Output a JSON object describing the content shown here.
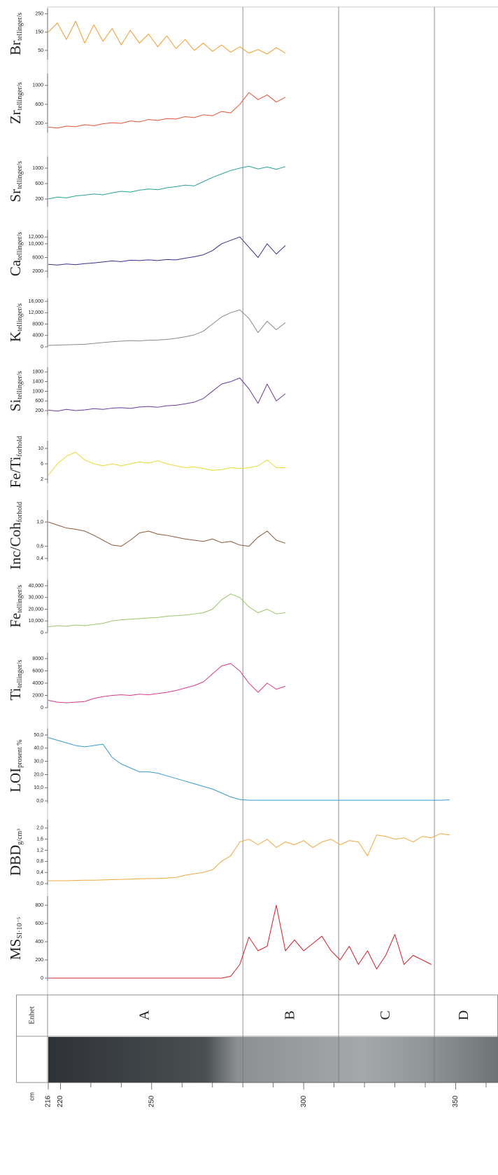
{
  "chart_data": [
    {
      "type": "line",
      "title": "Br",
      "unit": "tellinger/s",
      "color": "#f29a2e",
      "x": [
        216,
        219,
        222,
        225,
        228,
        231,
        234,
        237,
        240,
        243,
        246,
        249,
        252,
        255,
        258,
        261,
        264,
        267,
        270,
        273,
        276,
        279,
        282,
        285,
        288,
        291,
        294
      ],
      "values": [
        150,
        200,
        110,
        210,
        90,
        190,
        100,
        170,
        80,
        160,
        90,
        140,
        70,
        130,
        60,
        110,
        50,
        90,
        45,
        80,
        40,
        70,
        35,
        55,
        30,
        65,
        35
      ],
      "ylim": [
        0,
        280
      ],
      "yticks": [
        50,
        150,
        250
      ]
    },
    {
      "type": "line",
      "title": "Zr",
      "unit": "tellinger/s",
      "color": "#e0553a",
      "x": [
        216,
        219,
        222,
        225,
        228,
        231,
        234,
        237,
        240,
        243,
        246,
        249,
        252,
        255,
        258,
        261,
        264,
        267,
        270,
        273,
        276,
        279,
        282,
        285,
        288,
        291,
        294
      ],
      "values": [
        120,
        100,
        140,
        130,
        170,
        150,
        190,
        210,
        200,
        250,
        230,
        280,
        260,
        300,
        290,
        340,
        320,
        380,
        360,
        450,
        420,
        600,
        850,
        700,
        800,
        650,
        750
      ],
      "ylim": [
        0,
        1250
      ],
      "yticks": [
        200,
        600,
        1000
      ]
    },
    {
      "type": "line",
      "title": "Sr",
      "unit": "tellinger/s",
      "color": "#2aa198",
      "x": [
        216,
        219,
        222,
        225,
        228,
        231,
        234,
        237,
        240,
        243,
        246,
        249,
        252,
        255,
        258,
        261,
        264,
        267,
        270,
        273,
        276,
        279,
        282,
        285,
        288,
        291,
        294
      ],
      "values": [
        200,
        250,
        230,
        280,
        300,
        330,
        310,
        360,
        400,
        380,
        430,
        460,
        440,
        490,
        520,
        560,
        540,
        650,
        760,
        850,
        940,
        1000,
        1050,
        980,
        1030,
        970,
        1040
      ],
      "ylim": [
        0,
        1300
      ],
      "yticks": [
        200,
        600,
        1000
      ]
    },
    {
      "type": "line",
      "title": "Ca",
      "unit": "tellinger/s",
      "color": "#3a2f8a",
      "x": [
        216,
        219,
        222,
        225,
        228,
        231,
        234,
        237,
        240,
        243,
        246,
        249,
        252,
        255,
        258,
        261,
        264,
        267,
        270,
        273,
        276,
        279,
        282,
        285,
        288,
        291,
        294
      ],
      "values": [
        4000,
        3800,
        4100,
        3900,
        4200,
        4400,
        4700,
        5000,
        4800,
        5200,
        5100,
        5300,
        5100,
        5400,
        5300,
        5800,
        6200,
        6800,
        8000,
        10000,
        11000,
        12000,
        9000,
        6000,
        10000,
        7000,
        9500
      ],
      "ylim": [
        0,
        14000
      ],
      "yticks": [
        2000,
        6000,
        {
          "value": 10000,
          "label": "10,000"
        },
        {
          "value": 12000,
          "label": "12,000"
        }
      ]
    },
    {
      "type": "line",
      "title": "K",
      "unit": "tellinger/s",
      "color": "#8a8a8a",
      "x": [
        216,
        219,
        222,
        225,
        228,
        231,
        234,
        237,
        240,
        243,
        246,
        249,
        252,
        255,
        258,
        261,
        264,
        267,
        270,
        273,
        276,
        279,
        282,
        285,
        288,
        291,
        294
      ],
      "values": [
        500,
        600,
        700,
        800,
        900,
        1200,
        1500,
        1800,
        2000,
        2200,
        2100,
        2300,
        2400,
        2600,
        3000,
        3500,
        4200,
        5500,
        8000,
        10500,
        12000,
        13000,
        10000,
        5000,
        9000,
        6000,
        8500
      ],
      "ylim": [
        0,
        17000
      ],
      "yticks": [
        0,
        4000,
        8000,
        {
          "value": 12000,
          "label": "12,000"
        },
        {
          "value": 16000,
          "label": "16,000"
        }
      ]
    },
    {
      "type": "line",
      "title": "Si",
      "unit": "tellinger/s",
      "color": "#6a3a9a",
      "x": [
        216,
        219,
        222,
        225,
        228,
        231,
        234,
        237,
        240,
        243,
        246,
        249,
        252,
        255,
        258,
        261,
        264,
        267,
        270,
        273,
        276,
        279,
        282,
        285,
        288,
        291,
        294
      ],
      "values": [
        220,
        180,
        250,
        200,
        230,
        280,
        250,
        300,
        320,
        290,
        350,
        370,
        340,
        400,
        420,
        480,
        550,
        700,
        1000,
        1300,
        1400,
        1550,
        1100,
        500,
        1300,
        600,
        900
      ],
      "ylim": [
        0,
        2000
      ],
      "yticks": [
        200,
        600,
        1000,
        1400,
        1800
      ]
    },
    {
      "type": "line",
      "title": "Fe/Ti",
      "unit": "forhold",
      "color": "#e6dc3a",
      "x": [
        216,
        219,
        222,
        225,
        228,
        231,
        234,
        237,
        240,
        243,
        246,
        249,
        252,
        255,
        258,
        261,
        264,
        267,
        270,
        273,
        276,
        279,
        282,
        285,
        288,
        291,
        294
      ],
      "values": [
        3,
        6,
        8,
        9,
        7,
        6,
        5.5,
        6,
        5.5,
        6,
        6.5,
        6.2,
        6.8,
        6,
        5.5,
        5,
        5.2,
        4.8,
        4.3,
        4.5,
        5,
        4.8,
        5,
        5.5,
        7,
        5,
        5
      ],
      "ylim": [
        1,
        12
      ],
      "yticks": [
        2,
        6,
        10
      ]
    },
    {
      "type": "line",
      "title": "Inc/Coh",
      "unit": "forhold",
      "color": "#8b5a3c",
      "x": [
        216,
        219,
        222,
        225,
        228,
        231,
        234,
        237,
        240,
        243,
        246,
        249,
        252,
        255,
        258,
        261,
        264,
        267,
        270,
        273,
        276,
        279,
        282,
        285,
        288,
        291,
        294
      ],
      "values": [
        1.0,
        0.95,
        0.9,
        0.88,
        0.85,
        0.78,
        0.7,
        0.62,
        0.6,
        0.7,
        0.82,
        0.85,
        0.8,
        0.78,
        0.75,
        0.72,
        0.7,
        0.68,
        0.72,
        0.66,
        0.68,
        0.62,
        0.6,
        0.75,
        0.85,
        0.7,
        0.65
      ],
      "ylim": [
        0.35,
        1.2
      ],
      "yticks": [
        {
          "value": 0.4,
          "label": "0,4"
        },
        {
          "value": 0.6,
          "label": "0,6"
        },
        {
          "value": 1.0,
          "label": "1,0"
        }
      ]
    },
    {
      "type": "line",
      "title": "Fe",
      "unit": "tellinger/s",
      "color": "#9cc46a",
      "x": [
        216,
        219,
        222,
        225,
        228,
        231,
        234,
        237,
        240,
        243,
        246,
        249,
        252,
        255,
        258,
        261,
        264,
        267,
        270,
        273,
        276,
        279,
        282,
        285,
        288,
        291,
        294
      ],
      "values": [
        5000,
        6000,
        5500,
        6500,
        6000,
        7000,
        8000,
        10000,
        11000,
        11500,
        12000,
        12500,
        13000,
        14000,
        14500,
        15000,
        16000,
        17000,
        20000,
        28000,
        33000,
        30000,
        22000,
        17000,
        20000,
        16000,
        17000
      ],
      "ylim": [
        0,
        45000
      ],
      "yticks": [
        0,
        {
          "value": 10000,
          "label": "10,000"
        },
        {
          "value": 20000,
          "label": "20,000"
        },
        {
          "value": 30000,
          "label": "30,000"
        },
        {
          "value": 40000,
          "label": "40,000"
        }
      ]
    },
    {
      "type": "line",
      "title": "Ti",
      "unit": "tellinger/s",
      "color": "#d63c8c",
      "x": [
        216,
        219,
        222,
        225,
        228,
        231,
        234,
        237,
        240,
        243,
        246,
        249,
        252,
        255,
        258,
        261,
        264,
        267,
        270,
        273,
        276,
        279,
        282,
        285,
        288,
        291,
        294
      ],
      "values": [
        1200,
        900,
        800,
        900,
        1000,
        1500,
        1800,
        2000,
        2100,
        2000,
        2200,
        2100,
        2300,
        2500,
        2800,
        3200,
        3600,
        4200,
        5500,
        6800,
        7200,
        6000,
        4000,
        2500,
        4000,
        3000,
        3500
      ],
      "ylim": [
        0,
        9000
      ],
      "yticks": [
        0,
        2000,
        4000,
        6000,
        8000
      ]
    },
    {
      "type": "line",
      "title": "LOI",
      "unit": "prosent %",
      "color": "#3a9ad0",
      "x": [
        216,
        219,
        222,
        225,
        228,
        231,
        234,
        237,
        240,
        243,
        246,
        249,
        252,
        255,
        258,
        261,
        264,
        267,
        270,
        273,
        276,
        279,
        282,
        285,
        288,
        291,
        294,
        297,
        300,
        303,
        306,
        309,
        312,
        315,
        318,
        321,
        324,
        327,
        330,
        333,
        336,
        339,
        342,
        345,
        348
      ],
      "values": [
        48,
        46,
        44,
        42,
        41,
        42,
        43,
        33,
        28,
        25,
        22,
        22,
        21,
        19,
        17,
        15,
        13,
        11,
        9,
        6,
        3,
        1,
        0.5,
        0.5,
        0.5,
        0.5,
        0.5,
        0.5,
        0.5,
        0.5,
        0.5,
        0.5,
        0.5,
        0.5,
        0.5,
        0.5,
        0.5,
        0.5,
        0.5,
        0.5,
        0.5,
        0.5,
        0.5,
        0.5,
        0.8
      ],
      "ylim": [
        -2,
        55
      ],
      "yticks": [
        {
          "value": 0,
          "label": "0,0"
        },
        {
          "value": 10,
          "label": "10,0"
        },
        {
          "value": 20,
          "label": "20,0"
        },
        {
          "value": 30,
          "label": "30,0"
        },
        {
          "value": 40,
          "label": "40,0"
        },
        {
          "value": 50,
          "label": "50,0"
        }
      ]
    },
    {
      "type": "line",
      "title": "DBD",
      "unit": "g/cm³",
      "color": "#f0a840",
      "x": [
        216,
        219,
        222,
        225,
        228,
        231,
        234,
        237,
        240,
        243,
        246,
        249,
        252,
        255,
        258,
        261,
        264,
        267,
        270,
        273,
        276,
        279,
        282,
        285,
        288,
        291,
        294,
        297,
        300,
        303,
        306,
        309,
        312,
        315,
        318,
        321,
        324,
        327,
        330,
        333,
        336,
        339,
        342,
        345,
        348
      ],
      "values": [
        0.1,
        0.1,
        0.1,
        0.11,
        0.12,
        0.12,
        0.13,
        0.14,
        0.15,
        0.16,
        0.17,
        0.18,
        0.18,
        0.2,
        0.22,
        0.3,
        0.35,
        0.4,
        0.5,
        0.8,
        1.0,
        1.5,
        1.6,
        1.4,
        1.6,
        1.3,
        1.5,
        1.4,
        1.55,
        1.3,
        1.5,
        1.6,
        1.4,
        1.55,
        1.5,
        1.0,
        1.75,
        1.7,
        1.6,
        1.65,
        1.5,
        1.7,
        1.65,
        1.8,
        1.75
      ],
      "ylim": [
        -0.05,
        2.3
      ],
      "yticks": [
        {
          "value": 0,
          "label": "0,0"
        },
        {
          "value": 0.4,
          "label": "0,4"
        },
        {
          "value": 0.8,
          "label": "0,8"
        },
        {
          "value": 1.2,
          "label": "1,2"
        },
        {
          "value": 1.6,
          "label": "1,6"
        },
        {
          "value": 2.0,
          "label": "2,0"
        }
      ]
    },
    {
      "type": "line",
      "title": "MS",
      "unit": "SI·10⁻⁵",
      "color": "#d0202a",
      "x": [
        216,
        219,
        222,
        225,
        228,
        231,
        234,
        237,
        240,
        243,
        246,
        249,
        252,
        255,
        258,
        261,
        264,
        267,
        270,
        273,
        276,
        279,
        282,
        285,
        288,
        291,
        294,
        297,
        300,
        303,
        306,
        309,
        312,
        315,
        318,
        321,
        324,
        327,
        330,
        333,
        336,
        339,
        342
      ],
      "values": [
        0,
        0,
        0,
        0,
        0,
        0,
        0,
        0,
        0,
        0,
        0,
        0,
        0,
        0,
        0,
        0,
        0,
        0,
        0,
        0,
        20,
        150,
        450,
        300,
        350,
        800,
        300,
        420,
        300,
        380,
        460,
        300,
        200,
        350,
        150,
        300,
        100,
        250,
        480,
        150,
        250,
        200,
        150
      ],
      "ylim": [
        -30,
        900
      ],
      "yticks": [
        0,
        200,
        400,
        600,
        800
      ]
    }
  ],
  "depth_axis": {
    "label": "cm",
    "xlim": [
      216,
      363
    ],
    "ticks": [
      216,
      220,
      250,
      300,
      350
    ],
    "minor_ticks": [
      230,
      240,
      260,
      270,
      280,
      290,
      310,
      320,
      330,
      340,
      360
    ]
  },
  "units": {
    "header": "Enhet",
    "boundaries": [
      280,
      311.5,
      343
    ],
    "labels": [
      "A",
      "B",
      "C",
      "D"
    ]
  }
}
